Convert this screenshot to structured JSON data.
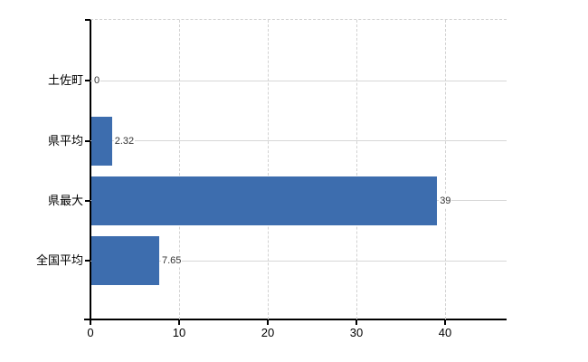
{
  "chart_data": {
    "type": "bar",
    "orientation": "horizontal",
    "title": "",
    "xlabel": "",
    "ylabel": "",
    "categories": [
      "土佐町",
      "県平均",
      "県最大",
      "全国平均"
    ],
    "values": [
      0,
      2.32,
      39,
      7.65
    ],
    "value_labels": [
      "0",
      "2.32",
      "39",
      "7.65"
    ],
    "x_ticks": [
      "0",
      "10",
      "20",
      "30",
      "40"
    ],
    "x_tick_values": [
      0,
      10,
      20,
      30,
      40
    ],
    "xlim": [
      0,
      47
    ],
    "legend_position": "none",
    "grid": {
      "horizontal_lines": "solid, one per category",
      "vertical_lines": "dashed, at each x tick",
      "plot_top_border": "dashed"
    },
    "colors": {
      "bar": "#3d6dae",
      "horizontal_grid": "#d7d7d7",
      "vertical_grid": "#d2d2d2",
      "axis": "#000000",
      "value_label_text": "#333333",
      "tick_label_text": "#000000",
      "background": "#ffffff"
    }
  }
}
